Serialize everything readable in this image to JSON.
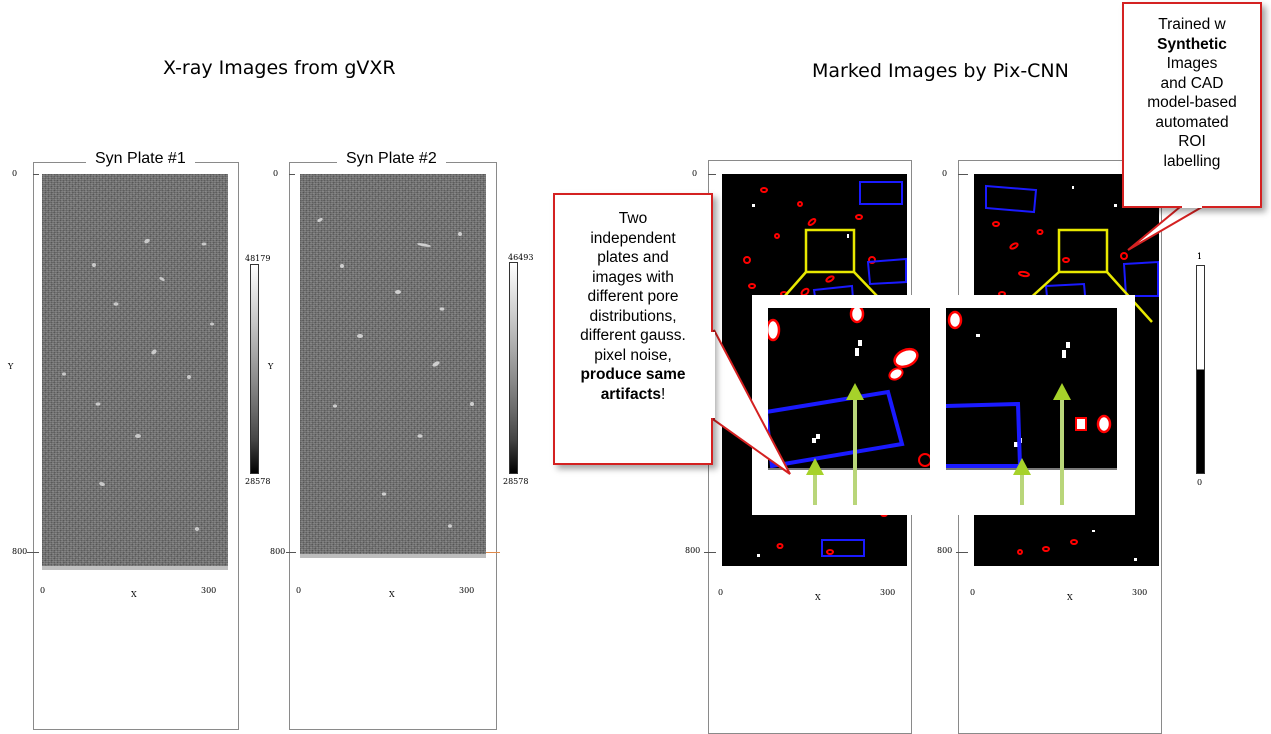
{
  "left_heading": "X-ray Images from gVXR",
  "right_heading": "Marked Images by Pix-CNN",
  "plate1": {
    "title": "Syn Plate #1",
    "y_ticks": [
      "0",
      "800"
    ],
    "x_ticks": [
      "0",
      "300"
    ],
    "xlabel": "X",
    "ylabel": "Y",
    "colorbar": {
      "max": "48179",
      "min": "28578"
    }
  },
  "plate2": {
    "title": "Syn Plate #2",
    "y_ticks": [
      "0",
      "800"
    ],
    "x_ticks": [
      "0",
      "300"
    ],
    "xlabel": "X",
    "ylabel": "Y",
    "colorbar": {
      "max": "46493",
      "min": "28578"
    }
  },
  "marked1": {
    "y_ticks": [
      "0",
      "800"
    ],
    "x_ticks": [
      "0",
      "300"
    ],
    "xlabel": "X"
  },
  "marked2": {
    "y_ticks": [
      "0",
      "800"
    ],
    "x_ticks": [
      "0",
      "300"
    ],
    "xlabel": "X"
  },
  "binary_colorbar": {
    "max": "1",
    "min": "0"
  },
  "callout_left": {
    "lines": [
      "Two",
      "independent",
      "plates and",
      "images with",
      "different pore",
      "distributions,",
      "different gauss.",
      "pixel noise,"
    ],
    "bold1": "produce same",
    "bold2": "artifacts",
    "tail": "!"
  },
  "callout_right": {
    "line1": "Trained w",
    "bold": "Synthetic",
    "lines": [
      "Images",
      "and CAD",
      "model-based",
      "automated",
      "ROI",
      "labelling"
    ]
  },
  "colors": {
    "callout_border": "#d42121",
    "roi_box": "#1a1aff",
    "zoom_box": "#e8e800",
    "arrow": "#a6d22a",
    "marking": "#ff0000"
  }
}
